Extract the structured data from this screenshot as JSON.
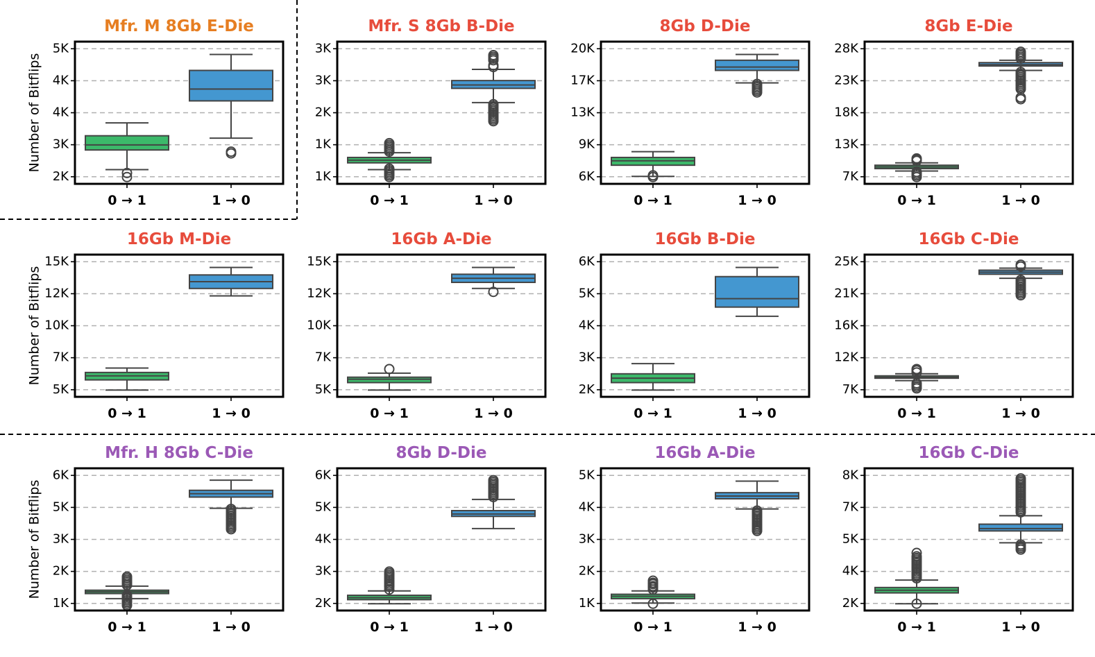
{
  "colors": {
    "mfr_m": "#e67e22",
    "mfr_s": "#e74c3c",
    "mfr_h": "#9b59b6",
    "box_0to1": "#3cb96a",
    "box_1to0": "#4497d0"
  },
  "chart_data": [
    {
      "type": "box",
      "title": "Mfr. M 8Gb E-Die",
      "title_color": "#e67e22",
      "ylabel": "Number of Bitflips",
      "categories": [
        "0 → 1",
        "1 → 0"
      ],
      "yticks": [
        "2K",
        "3K",
        "4K",
        "4K",
        "5K"
      ],
      "ylim": [
        0,
        4.2
      ],
      "boxes": [
        {
          "whislo": 0.42,
          "q1": 1.0,
          "med": 1.15,
          "q3": 1.42,
          "whishi": 1.8,
          "fliers": [
            0.2,
            0.32
          ]
        },
        {
          "whislo": 1.35,
          "q1": 2.45,
          "med": 2.8,
          "q3": 3.35,
          "whishi": 3.82,
          "fliers": [
            0.9,
            0.95
          ]
        }
      ]
    },
    {
      "type": "box",
      "title": "Mfr. S 8Gb B-Die",
      "title_color": "#e74c3c",
      "ylabel": "",
      "categories": [
        "0 → 1",
        "1 → 0"
      ],
      "yticks": [
        "1K",
        "1K",
        "2K",
        "3K",
        "3K"
      ],
      "ylim": [
        0,
        4.2
      ],
      "boxes": [
        {
          "whislo": 0.42,
          "q1": 0.62,
          "med": 0.7,
          "q3": 0.78,
          "whishi": 0.92,
          "fliers": [
            0.2,
            0.25,
            0.3,
            0.35,
            0.4,
            0.45,
            0.95,
            1.0,
            1.05,
            1.1,
            1.15,
            1.2
          ]
        },
        {
          "whislo": 2.4,
          "q1": 2.82,
          "med": 2.92,
          "q3": 3.05,
          "whishi": 3.38,
          "fliers": [
            1.85,
            1.9,
            1.95,
            2.0,
            2.05,
            2.1,
            2.15,
            2.2,
            2.25,
            2.3,
            2.35,
            3.45,
            3.5,
            3.65,
            3.7,
            3.75,
            3.8
          ]
        }
      ]
    },
    {
      "type": "box",
      "title": "8Gb D-Die",
      "title_color": "#e74c3c",
      "ylabel": "",
      "categories": [
        "0 → 1",
        "1 → 0"
      ],
      "yticks": [
        "6K",
        "9K",
        "13K",
        "17K",
        "20K"
      ],
      "ylim": [
        0,
        4.2
      ],
      "boxes": [
        {
          "whislo": 0.22,
          "q1": 0.55,
          "med": 0.68,
          "q3": 0.78,
          "whishi": 0.95,
          "fliers": [
            0.2,
            0.25
          ]
        },
        {
          "whislo": 2.98,
          "q1": 3.35,
          "med": 3.45,
          "q3": 3.65,
          "whishi": 3.82,
          "fliers": [
            2.7,
            2.75,
            2.8,
            2.85,
            2.9,
            2.95
          ]
        }
      ]
    },
    {
      "type": "box",
      "title": "8Gb E-Die",
      "title_color": "#e74c3c",
      "ylabel": "",
      "categories": [
        "0 → 1",
        "1 → 0"
      ],
      "yticks": [
        "7K",
        "13K",
        "18K",
        "23K",
        "28K"
      ],
      "ylim": [
        0,
        4.2
      ],
      "boxes": [
        {
          "whislo": 0.38,
          "q1": 0.45,
          "med": 0.5,
          "q3": 0.55,
          "whishi": 0.62,
          "fliers": [
            0.2,
            0.25,
            0.3,
            0.35,
            0.68,
            0.72,
            0.75
          ]
        },
        {
          "whislo": 3.35,
          "q1": 3.48,
          "med": 3.52,
          "q3": 3.58,
          "whishi": 3.65,
          "fliers": [
            2.5,
            2.55,
            2.8,
            2.85,
            2.9,
            2.95,
            3.0,
            3.05,
            3.1,
            3.15,
            3.2,
            3.25,
            3.3,
            3.7,
            3.75,
            3.8,
            3.85,
            3.9
          ]
        }
      ]
    },
    {
      "type": "box",
      "title": "16Gb M-Die",
      "title_color": "#e74c3c",
      "ylabel": "Number of Bitflips",
      "categories": [
        "0 → 1",
        "1 → 0"
      ],
      "yticks": [
        "5K",
        "7K",
        "10K",
        "12K",
        "15K"
      ],
      "ylim": [
        0,
        4.2
      ],
      "boxes": [
        {
          "whislo": 0.2,
          "q1": 0.5,
          "med": 0.62,
          "q3": 0.72,
          "whishi": 0.85,
          "fliers": []
        },
        {
          "whislo": 2.98,
          "q1": 3.2,
          "med": 3.4,
          "q3": 3.6,
          "whishi": 3.82,
          "fliers": []
        }
      ]
    },
    {
      "type": "box",
      "title": "16Gb A-Die",
      "title_color": "#e74c3c",
      "ylabel": "",
      "categories": [
        "0 → 1",
        "1 → 0"
      ],
      "yticks": [
        "5K",
        "7K",
        "10K",
        "12K",
        "15K"
      ],
      "ylim": [
        0,
        4.2
      ],
      "boxes": [
        {
          "whislo": 0.2,
          "q1": 0.42,
          "med": 0.52,
          "q3": 0.58,
          "whishi": 0.7,
          "fliers": [
            0.82
          ]
        },
        {
          "whislo": 3.2,
          "q1": 3.38,
          "med": 3.5,
          "q3": 3.62,
          "whishi": 3.82,
          "fliers": [
            3.1
          ]
        }
      ]
    },
    {
      "type": "box",
      "title": "16Gb B-Die",
      "title_color": "#e74c3c",
      "ylabel": "",
      "categories": [
        "0 → 1",
        "1 → 0"
      ],
      "yticks": [
        "2K",
        "3K",
        "4K",
        "5K",
        "6K"
      ],
      "ylim": [
        0,
        4.2
      ],
      "boxes": [
        {
          "whislo": 0.2,
          "q1": 0.42,
          "med": 0.55,
          "q3": 0.68,
          "whishi": 0.98,
          "fliers": []
        },
        {
          "whislo": 2.38,
          "q1": 2.65,
          "med": 2.9,
          "q3": 3.55,
          "whishi": 3.82,
          "fliers": []
        }
      ]
    },
    {
      "type": "box",
      "title": "16Gb C-Die",
      "title_color": "#e74c3c",
      "ylabel": "",
      "categories": [
        "0 → 1",
        "1 → 0"
      ],
      "yticks": [
        "7K",
        "12K",
        "16K",
        "21K",
        "25K"
      ],
      "ylim": [
        0,
        4.2
      ],
      "boxes": [
        {
          "whislo": 0.48,
          "q1": 0.55,
          "med": 0.58,
          "q3": 0.62,
          "whishi": 0.68,
          "fliers": [
            0.25,
            0.3,
            0.35,
            0.4,
            0.72,
            0.78,
            0.82
          ]
        },
        {
          "whislo": 3.5,
          "q1": 3.62,
          "med": 3.68,
          "q3": 3.74,
          "whishi": 3.8,
          "fliers": [
            3.0,
            3.05,
            3.1,
            3.15,
            3.2,
            3.25,
            3.3,
            3.35,
            3.4,
            3.45,
            3.85,
            3.9
          ]
        }
      ]
    },
    {
      "type": "box",
      "title": "Mfr. H 8Gb C-Die",
      "title_color": "#9b59b6",
      "ylabel": "Number of Bitflips",
      "categories": [
        "0 → 1",
        "1 → 0"
      ],
      "yticks": [
        "1K",
        "2K",
        "3K",
        "5K",
        "6K"
      ],
      "ylim": [
        0,
        4.2
      ],
      "boxes": [
        {
          "whislo": 0.35,
          "q1": 0.5,
          "med": 0.55,
          "q3": 0.6,
          "whishi": 0.72,
          "fliers": [
            0.15,
            0.2,
            0.25,
            0.3,
            0.35,
            0.4,
            0.45,
            0.75,
            0.8,
            0.85,
            0.9,
            0.95,
            1.0
          ]
        },
        {
          "whislo": 3.02,
          "q1": 3.35,
          "med": 3.45,
          "q3": 3.55,
          "whishi": 3.85,
          "fliers": [
            2.4,
            2.45,
            2.5,
            2.55,
            2.6,
            2.65,
            2.7,
            2.75,
            2.8,
            2.85,
            2.9,
            2.95,
            3.0
          ]
        }
      ]
    },
    {
      "type": "box",
      "title": "8Gb D-Die",
      "title_color": "#9b59b6",
      "ylabel": "",
      "categories": [
        "0 → 1",
        "1 → 0"
      ],
      "yticks": [
        "2K",
        "3K",
        "4K",
        "5K",
        "6K"
      ],
      "ylim": [
        0,
        4.2
      ],
      "boxes": [
        {
          "whislo": 0.2,
          "q1": 0.32,
          "med": 0.38,
          "q3": 0.45,
          "whishi": 0.58,
          "fliers": [
            0.62,
            0.7,
            0.75,
            0.8,
            0.85,
            0.9,
            0.95,
            1.0,
            1.05,
            1.1,
            1.15
          ]
        },
        {
          "whislo": 2.42,
          "q1": 2.78,
          "med": 2.85,
          "q3": 2.95,
          "whishi": 3.28,
          "fliers": [
            3.35,
            3.4,
            3.45,
            3.5,
            3.55,
            3.6,
            3.65,
            3.7,
            3.75,
            3.8,
            3.85
          ]
        }
      ]
    },
    {
      "type": "box",
      "title": "16Gb A-Die",
      "title_color": "#9b59b6",
      "ylabel": "",
      "categories": [
        "0 → 1",
        "1 → 0"
      ],
      "yticks": [
        "1K",
        "2K",
        "3K",
        "4K",
        "5K"
      ],
      "ylim": [
        0,
        4.2
      ],
      "boxes": [
        {
          "whislo": 0.22,
          "q1": 0.35,
          "med": 0.42,
          "q3": 0.48,
          "whishi": 0.58,
          "fliers": [
            0.2,
            0.62,
            0.68,
            0.72,
            0.78,
            0.82,
            0.88
          ]
        },
        {
          "whislo": 3.0,
          "q1": 3.3,
          "med": 3.38,
          "q3": 3.48,
          "whishi": 3.82,
          "fliers": [
            2.35,
            2.4,
            2.45,
            2.5,
            2.55,
            2.6,
            2.65,
            2.7,
            2.75,
            2.8,
            2.85,
            2.9,
            2.95
          ]
        }
      ]
    },
    {
      "type": "box",
      "title": "16Gb C-Die",
      "title_color": "#9b59b6",
      "ylabel": "",
      "categories": [
        "0 → 1",
        "1 → 0"
      ],
      "yticks": [
        "2K",
        "4K",
        "5K",
        "7K",
        "8K"
      ],
      "ylim": [
        0,
        4.2
      ],
      "boxes": [
        {
          "whislo": 0.2,
          "q1": 0.52,
          "med": 0.6,
          "q3": 0.68,
          "whishi": 0.9,
          "fliers": [
            0.2,
            0.95,
            1.0,
            1.05,
            1.1,
            1.15,
            1.2,
            1.25,
            1.3,
            1.35,
            1.4,
            1.45,
            1.5,
            1.55,
            1.6,
            1.7
          ]
        },
        {
          "whislo": 2.0,
          "q1": 2.35,
          "med": 2.42,
          "q3": 2.55,
          "whishi": 2.8,
          "fliers": [
            1.8,
            1.85,
            1.9,
            1.95,
            2.9,
            2.95,
            3.0,
            3.05,
            3.1,
            3.15,
            3.2,
            3.25,
            3.3,
            3.35,
            3.4,
            3.45,
            3.5,
            3.55,
            3.6,
            3.65,
            3.7,
            3.75,
            3.8,
            3.85,
            3.9
          ]
        }
      ]
    }
  ]
}
